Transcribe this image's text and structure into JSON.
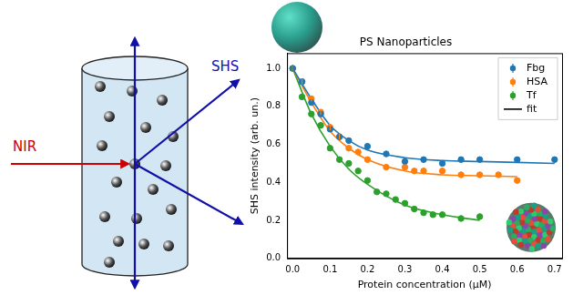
{
  "chart_data": {
    "type": "scatter",
    "title": "PS Nanoparticles",
    "x_label": "Protein concentration (μM)",
    "y_label": "SHS intensity (arb. un.)",
    "xlim": [
      -0.015,
      0.72
    ],
    "ylim": [
      0,
      1.08
    ],
    "xticks": [
      {
        "value": 0,
        "label": "0.0"
      },
      0.1,
      0.2,
      0.3,
      0.4,
      0.5,
      0.6,
      0.7
    ],
    "yticks": [
      {
        "value": 0,
        "label": "0.0"
      },
      0.2,
      0.4,
      0.6,
      0.8,
      {
        "value": 1,
        "label": "1.0"
      }
    ],
    "grid": false,
    "legend": "upper right",
    "fit": {
      "name": "fit",
      "color": "#000000",
      "line_style": "solid"
    },
    "series": [
      {
        "name": "Fbg",
        "color": "#1f77b4",
        "marker": "circle",
        "x": [
          0,
          0.025,
          0.05,
          0.075,
          0.1,
          0.125,
          0.15,
          0.2,
          0.25,
          0.3,
          0.35,
          0.4,
          0.45,
          0.5,
          0.6,
          0.7
        ],
        "values": [
          1.0,
          0.93,
          0.82,
          0.76,
          0.68,
          0.64,
          0.62,
          0.59,
          0.55,
          0.51,
          0.52,
          0.5,
          0.52,
          0.52,
          0.52,
          0.52
        ],
        "errors": [
          0.015,
          0.015,
          0.015,
          0.015,
          0.015,
          0.015,
          0.015,
          0.015,
          0.015,
          0.015,
          0.015,
          0.015,
          0.015,
          0.015,
          0.015,
          0.015
        ],
        "fit_x": [
          0,
          0.05,
          0.1,
          0.15,
          0.2,
          0.3,
          0.4,
          0.5,
          0.6,
          0.7
        ],
        "fit_values": [
          1.0,
          0.84,
          0.7,
          0.62,
          0.57,
          0.53,
          0.515,
          0.51,
          0.505,
          0.5
        ]
      },
      {
        "name": "HSA",
        "color": "#ff7f0e",
        "marker": "circle",
        "x": [
          0,
          0.025,
          0.05,
          0.075,
          0.1,
          0.125,
          0.15,
          0.175,
          0.2,
          0.25,
          0.3,
          0.325,
          0.35,
          0.4,
          0.45,
          0.5,
          0.55,
          0.6
        ],
        "values": [
          1.0,
          0.93,
          0.84,
          0.77,
          0.69,
          0.64,
          0.58,
          0.56,
          0.52,
          0.48,
          0.48,
          0.46,
          0.46,
          0.46,
          0.44,
          0.44,
          0.44,
          0.41
        ],
        "errors": [
          0.015,
          0.015,
          0.015,
          0.015,
          0.015,
          0.015,
          0.015,
          0.015,
          0.015,
          0.015,
          0.015,
          0.015,
          0.015,
          0.015,
          0.015,
          0.015,
          0.015,
          0.015
        ],
        "fit_x": [
          0,
          0.05,
          0.1,
          0.15,
          0.2,
          0.3,
          0.4,
          0.5,
          0.6
        ],
        "fit_values": [
          1.0,
          0.82,
          0.67,
          0.58,
          0.52,
          0.46,
          0.44,
          0.435,
          0.43
        ]
      },
      {
        "name": "Tf",
        "color": "#2ca02c",
        "marker": "circle",
        "x": [
          0,
          0.025,
          0.05,
          0.075,
          0.1,
          0.125,
          0.15,
          0.175,
          0.2,
          0.225,
          0.25,
          0.275,
          0.3,
          0.325,
          0.35,
          0.375,
          0.4,
          0.45,
          0.5
        ],
        "values": [
          1.0,
          0.85,
          0.76,
          0.7,
          0.58,
          0.52,
          0.5,
          0.46,
          0.41,
          0.35,
          0.34,
          0.31,
          0.29,
          0.26,
          0.24,
          0.23,
          0.23,
          0.21,
          0.22
        ],
        "errors": [
          0.015,
          0.015,
          0.015,
          0.015,
          0.015,
          0.015,
          0.015,
          0.015,
          0.015,
          0.015,
          0.015,
          0.015,
          0.015,
          0.015,
          0.015,
          0.015,
          0.015,
          0.015,
          0.015
        ],
        "fit_x": [
          0,
          0.05,
          0.1,
          0.15,
          0.2,
          0.3,
          0.4,
          0.5
        ],
        "fit_values": [
          1.0,
          0.76,
          0.59,
          0.47,
          0.39,
          0.28,
          0.23,
          0.2
        ]
      }
    ]
  },
  "diagram": {
    "incident_beam": "NIR",
    "scattered_beam": "SHS"
  }
}
